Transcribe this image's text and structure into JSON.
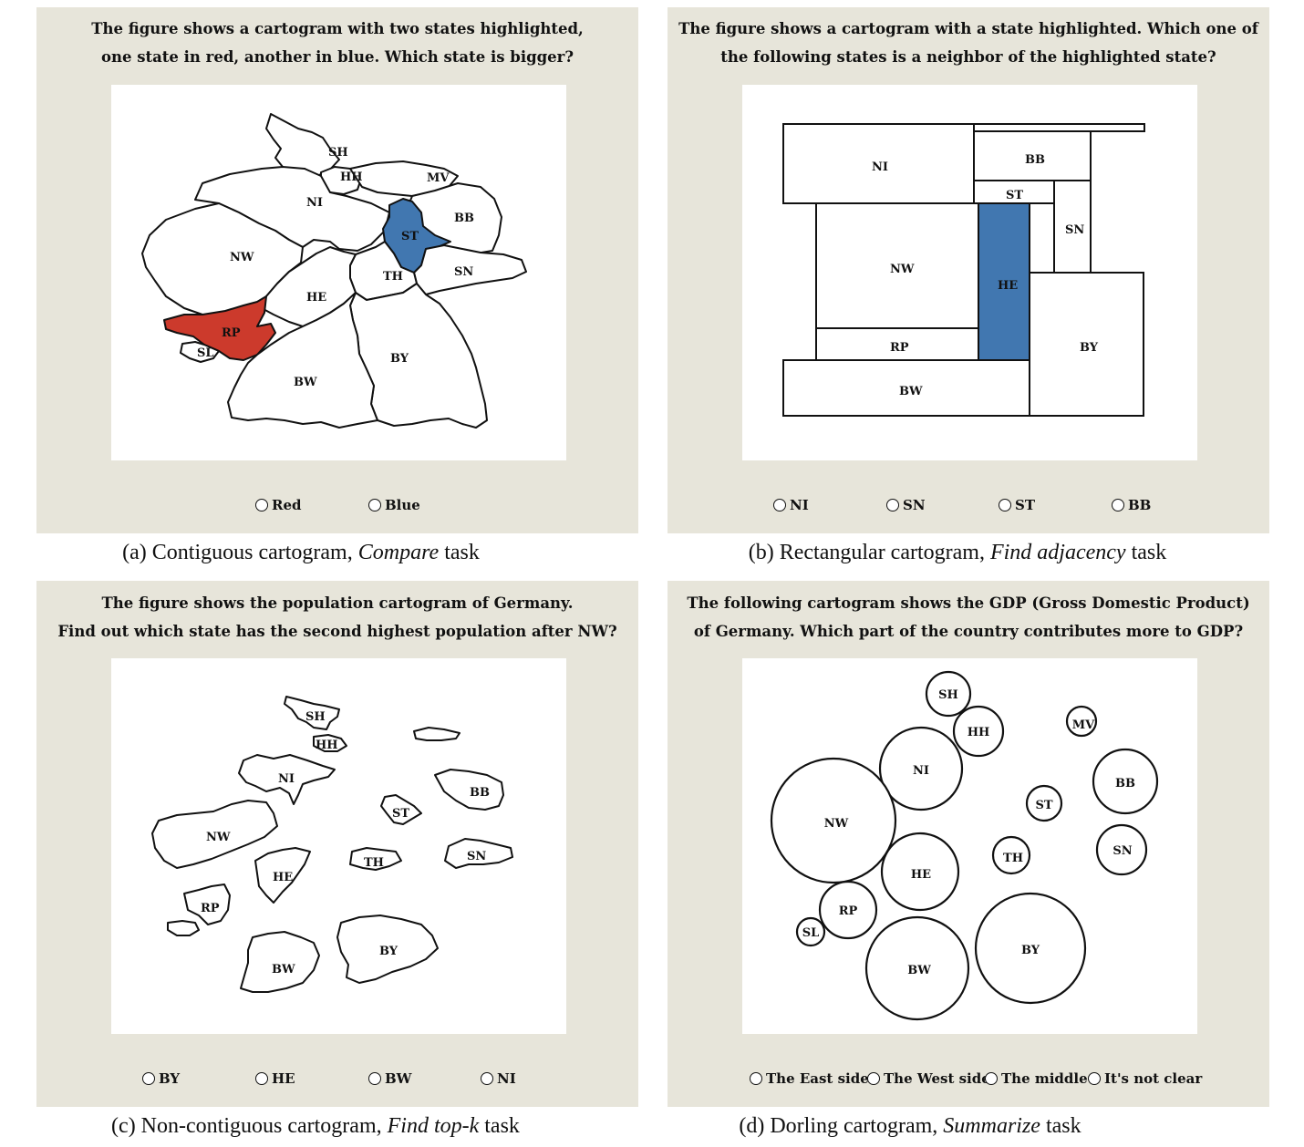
{
  "colors": {
    "panel_bg": "#e7e5da",
    "red_highlight": "#cc3a2c",
    "blue_highlight": "#4177b0"
  },
  "panel_a": {
    "question_line1": "The figure shows a cartogram with two states highlighted,",
    "question_line2": "one state in red, another in blue. Which state is bigger?",
    "labels": {
      "SH": "SH",
      "HH": "HH",
      "MV": "MV",
      "NI": "NI",
      "BB": "BB",
      "ST": "ST",
      "NW": "NW",
      "SN": "SN",
      "TH": "TH",
      "HE": "HE",
      "RP": "RP",
      "SL": "SL",
      "BY": "BY",
      "BW": "BW"
    },
    "options": [
      "Red",
      "Blue"
    ],
    "caption_prefix": "(a) Contiguous cartogram, ",
    "caption_task": "Compare",
    "caption_suffix": " task"
  },
  "panel_b": {
    "question_line1": "The figure shows a cartogram with a state highlighted. Which one of",
    "question_line2": "the following states is a neighbor of the highlighted state?",
    "labels": {
      "NI": "NI",
      "BB": "BB",
      "ST": "ST",
      "SN": "SN",
      "NW": "NW",
      "HE": "HE",
      "RP": "RP",
      "BY": "BY",
      "BW": "BW"
    },
    "options": [
      "NI",
      "SN",
      "ST",
      "BB"
    ],
    "caption_prefix": "(b) Rectangular cartogram, ",
    "caption_task": "Find adjacency",
    "caption_suffix": " task"
  },
  "panel_c": {
    "question_line1": "The figure shows the population cartogram of Germany.",
    "question_line2": "Find out which state has the second highest population after NW?",
    "labels": {
      "SH": "SH",
      "HH": "HH",
      "NI": "NI",
      "BB": "BB",
      "ST": "ST",
      "NW": "NW",
      "TH": "TH",
      "SN": "SN",
      "HE": "HE",
      "RP": "RP",
      "BY": "BY",
      "BW": "BW"
    },
    "options": [
      "BY",
      "HE",
      "BW",
      "NI"
    ],
    "caption_prefix": "(c) Non-contiguous cartogram, ",
    "caption_task": "Find top-k",
    "caption_suffix": " task"
  },
  "panel_d": {
    "question_line1": "The following cartogram shows the GDP (Gross Domestic Product)",
    "question_line2": "of Germany. Which part of the country contributes more to GDP?",
    "labels": {
      "SH": "SH",
      "HH": "HH",
      "MV": "MV",
      "NI": "NI",
      "BB": "BB",
      "ST": "ST",
      "NW": "NW",
      "TH": "TH",
      "SN": "SN",
      "HE": "HE",
      "RP": "RP",
      "SL": "SL",
      "BY": "BY",
      "BW": "BW"
    },
    "options": [
      "The East side",
      "The West side",
      "The middle",
      "It's not clear"
    ],
    "caption_prefix": "(d) Dorling cartogram, ",
    "caption_task": "Summarize",
    "caption_suffix": " task"
  }
}
